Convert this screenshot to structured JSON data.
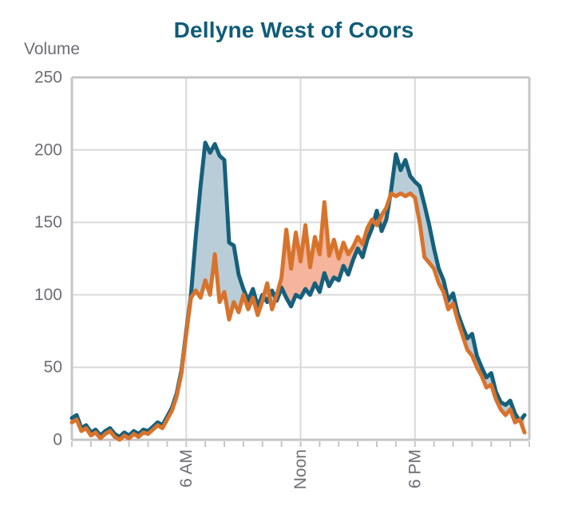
{
  "chart_data": {
    "type": "line",
    "title": "Dellyne West of Coors",
    "ylabel": "Volume",
    "xlabel": "",
    "x_unit": "hour of day",
    "x_start_hour": 0,
    "x_step_hours": 0.25,
    "xlim_hours": [
      0,
      24
    ],
    "ylim": [
      0,
      250
    ],
    "y_ticks": [
      0,
      50,
      100,
      150,
      200,
      250
    ],
    "x_tick_labels": [
      {
        "hour": 6,
        "label": "6 AM"
      },
      {
        "hour": 12,
        "label": "Noon"
      },
      {
        "hour": 18,
        "label": "6 PM"
      }
    ],
    "x_minor_tick_step_hours": 1,
    "grid": true,
    "legend": "none",
    "fill_between_series": true,
    "colors": {
      "title": "#0f5c78",
      "axis_text": "#6d6e71",
      "gridline": "#d9d9d9",
      "border": "#c6c6c6",
      "background": "#ffffff"
    },
    "series": [
      {
        "name": "teal",
        "color": "#16607c",
        "fill_color_when_above": "#b9cdd8",
        "values": [
          15,
          17,
          8,
          10,
          5,
          7,
          3,
          6,
          8,
          4,
          2,
          5,
          3,
          6,
          4,
          7,
          6,
          9,
          12,
          10,
          16,
          22,
          32,
          48,
          75,
          100,
          140,
          175,
          205,
          198,
          204,
          196,
          193,
          136,
          134,
          114,
          104,
          96,
          104,
          92,
          100,
          95,
          103,
          96,
          105,
          98,
          92,
          100,
          98,
          104,
          100,
          108,
          102,
          115,
          106,
          112,
          110,
          120,
          114,
          124,
          132,
          126,
          138,
          146,
          158,
          144,
          152,
          172,
          197,
          186,
          193,
          182,
          178,
          175,
          162,
          148,
          132,
          118,
          110,
          96,
          101,
          87,
          78,
          70,
          73,
          58,
          50,
          43,
          46,
          33,
          26,
          24,
          27,
          18,
          13,
          17
        ]
      },
      {
        "name": "orange",
        "color": "#d8732c",
        "fill_color_when_above": "#f5b49b",
        "values": [
          12,
          14,
          6,
          8,
          3,
          5,
          1,
          4,
          6,
          2,
          0,
          3,
          1,
          4,
          2,
          5,
          4,
          7,
          10,
          8,
          14,
          20,
          30,
          46,
          73,
          98,
          103,
          98,
          110,
          100,
          128,
          95,
          102,
          83,
          95,
          88,
          100,
          90,
          98,
          86,
          96,
          108,
          90,
          100,
          112,
          145,
          118,
          143,
          123,
          148,
          119,
          140,
          128,
          164,
          127,
          138,
          125,
          136,
          128,
          133,
          140,
          135,
          146,
          152,
          148,
          155,
          160,
          170,
          168,
          170,
          168,
          170,
          167,
          150,
          126,
          122,
          118,
          108,
          102,
          90,
          94,
          82,
          72,
          62,
          58,
          50,
          44,
          36,
          38,
          28,
          21,
          17,
          21,
          12,
          14,
          5
        ]
      }
    ]
  }
}
